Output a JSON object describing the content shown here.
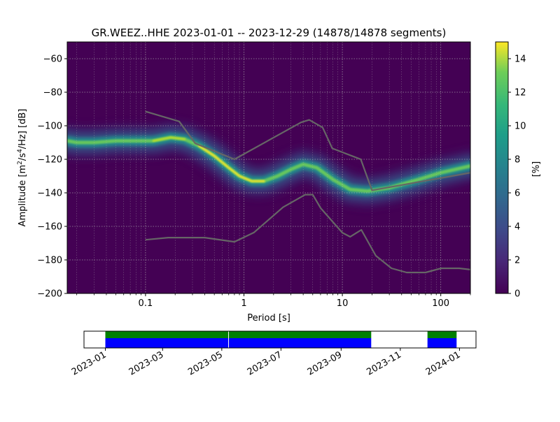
{
  "chart_data": [
    {
      "type": "heatmap",
      "title": "GR.WEEZ..HHE   2023-01-01 -- 2023-12-29  (14878/14878 segments)",
      "xlabel": "Period [s]",
      "ylabel_parts": [
        "Amplitude [m",
        "2",
        "/s",
        "4",
        "/Hz] [dB]"
      ],
      "xscale": "log",
      "xlim": [
        0.016,
        200
      ],
      "ylim": [
        -200,
        -50
      ],
      "xticks": [
        {
          "value": 0.1,
          "label": "0.1"
        },
        {
          "value": 1,
          "label": "1"
        },
        {
          "value": 10,
          "label": "10"
        },
        {
          "value": 100,
          "label": "100"
        }
      ],
      "yticks": [
        {
          "value": -60,
          "label": "−60"
        },
        {
          "value": -80,
          "label": "−80"
        },
        {
          "value": -100,
          "label": "−100"
        },
        {
          "value": -120,
          "label": "−120"
        },
        {
          "value": -140,
          "label": "−140"
        },
        {
          "value": -160,
          "label": "−160"
        },
        {
          "value": -180,
          "label": "−180"
        },
        {
          "value": -200,
          "label": "−200"
        }
      ],
      "grid": true,
      "colorbar": {
        "label": "[%]",
        "range": [
          0,
          15
        ],
        "colormap": "viridis",
        "ticks": [
          {
            "value": 0,
            "label": "0"
          },
          {
            "value": 2,
            "label": "2"
          },
          {
            "value": 4,
            "label": "4"
          },
          {
            "value": 6,
            "label": "6"
          },
          {
            "value": 8,
            "label": "8"
          },
          {
            "value": 10,
            "label": "10"
          },
          {
            "value": 12,
            "label": "12"
          },
          {
            "value": 14,
            "label": "14"
          }
        ]
      },
      "mode_curve": [
        {
          "x": 0.016,
          "y": -109
        },
        {
          "x": 0.02,
          "y": -110
        },
        {
          "x": 0.03,
          "y": -110
        },
        {
          "x": 0.05,
          "y": -109
        },
        {
          "x": 0.08,
          "y": -109
        },
        {
          "x": 0.12,
          "y": -109
        },
        {
          "x": 0.18,
          "y": -107
        },
        {
          "x": 0.25,
          "y": -108
        },
        {
          "x": 0.35,
          "y": -112
        },
        {
          "x": 0.5,
          "y": -118
        },
        {
          "x": 0.7,
          "y": -125
        },
        {
          "x": 0.9,
          "y": -130
        },
        {
          "x": 1.2,
          "y": -133
        },
        {
          "x": 1.6,
          "y": -133
        },
        {
          "x": 2.2,
          "y": -130
        },
        {
          "x": 3.0,
          "y": -126
        },
        {
          "x": 4.0,
          "y": -123
        },
        {
          "x": 5.5,
          "y": -125
        },
        {
          "x": 8.0,
          "y": -132
        },
        {
          "x": 12,
          "y": -138
        },
        {
          "x": 18,
          "y": -139
        },
        {
          "x": 30,
          "y": -137
        },
        {
          "x": 60,
          "y": -132
        },
        {
          "x": 100,
          "y": -128
        },
        {
          "x": 200,
          "y": -124
        }
      ],
      "noise_models": [
        {
          "name": "high",
          "color": "#666666",
          "points": [
            {
              "x": 0.1,
              "y": -91.5
            },
            {
              "x": 0.22,
              "y": -97.4
            },
            {
              "x": 0.32,
              "y": -110.5
            },
            {
              "x": 0.8,
              "y": -120
            },
            {
              "x": 3.8,
              "y": -98
            },
            {
              "x": 4.6,
              "y": -96.5
            },
            {
              "x": 6.3,
              "y": -101
            },
            {
              "x": 7.9,
              "y": -113.5
            },
            {
              "x": 15.4,
              "y": -120
            },
            {
              "x": 20,
              "y": -138.5
            },
            {
              "x": 200,
              "y": -128
            }
          ]
        },
        {
          "name": "low",
          "color": "#666666",
          "points": [
            {
              "x": 0.1,
              "y": -168
            },
            {
              "x": 0.17,
              "y": -166.7
            },
            {
              "x": 0.4,
              "y": -166.7
            },
            {
              "x": 0.8,
              "y": -169.2
            },
            {
              "x": 1.26,
              "y": -163.7
            },
            {
              "x": 2.5,
              "y": -148.6
            },
            {
              "x": 4.2,
              "y": -141.1
            },
            {
              "x": 5.0,
              "y": -141.1
            },
            {
              "x": 6.0,
              "y": -149
            },
            {
              "x": 10,
              "y": -163.8
            },
            {
              "x": 12,
              "y": -166.2
            },
            {
              "x": 15.6,
              "y": -162.1
            },
            {
              "x": 21.9,
              "y": -177.5
            },
            {
              "x": 31.6,
              "y": -185
            },
            {
              "x": 45,
              "y": -187.5
            },
            {
              "x": 70,
              "y": -187.5
            },
            {
              "x": 101,
              "y": -185
            },
            {
              "x": 154,
              "y": -185
            },
            {
              "x": 200,
              "y": -185.8
            }
          ]
        }
      ]
    },
    {
      "type": "timeline",
      "date_range": [
        "2022-12-10",
        "2024-01-18"
      ],
      "tick_labels": [
        {
          "date": "2023-01-01",
          "label": "2023-01"
        },
        {
          "date": "2023-03-01",
          "label": "2023-03"
        },
        {
          "date": "2023-05-01",
          "label": "2023-05"
        },
        {
          "date": "2023-07-01",
          "label": "2023-07"
        },
        {
          "date": "2023-09-01",
          "label": "2023-09"
        },
        {
          "date": "2023-11-01",
          "label": "2023-11"
        },
        {
          "date": "2024-01-01",
          "label": "2024-01"
        }
      ],
      "data_segments": [
        {
          "start": "2023-01-01",
          "end": "2023-05-08"
        },
        {
          "start": "2023-05-08",
          "end": "2023-10-02"
        },
        {
          "start": "2023-11-29",
          "end": "2023-12-29"
        }
      ],
      "colors": {
        "top": "#008000",
        "bottom": "#0000ff"
      }
    }
  ]
}
